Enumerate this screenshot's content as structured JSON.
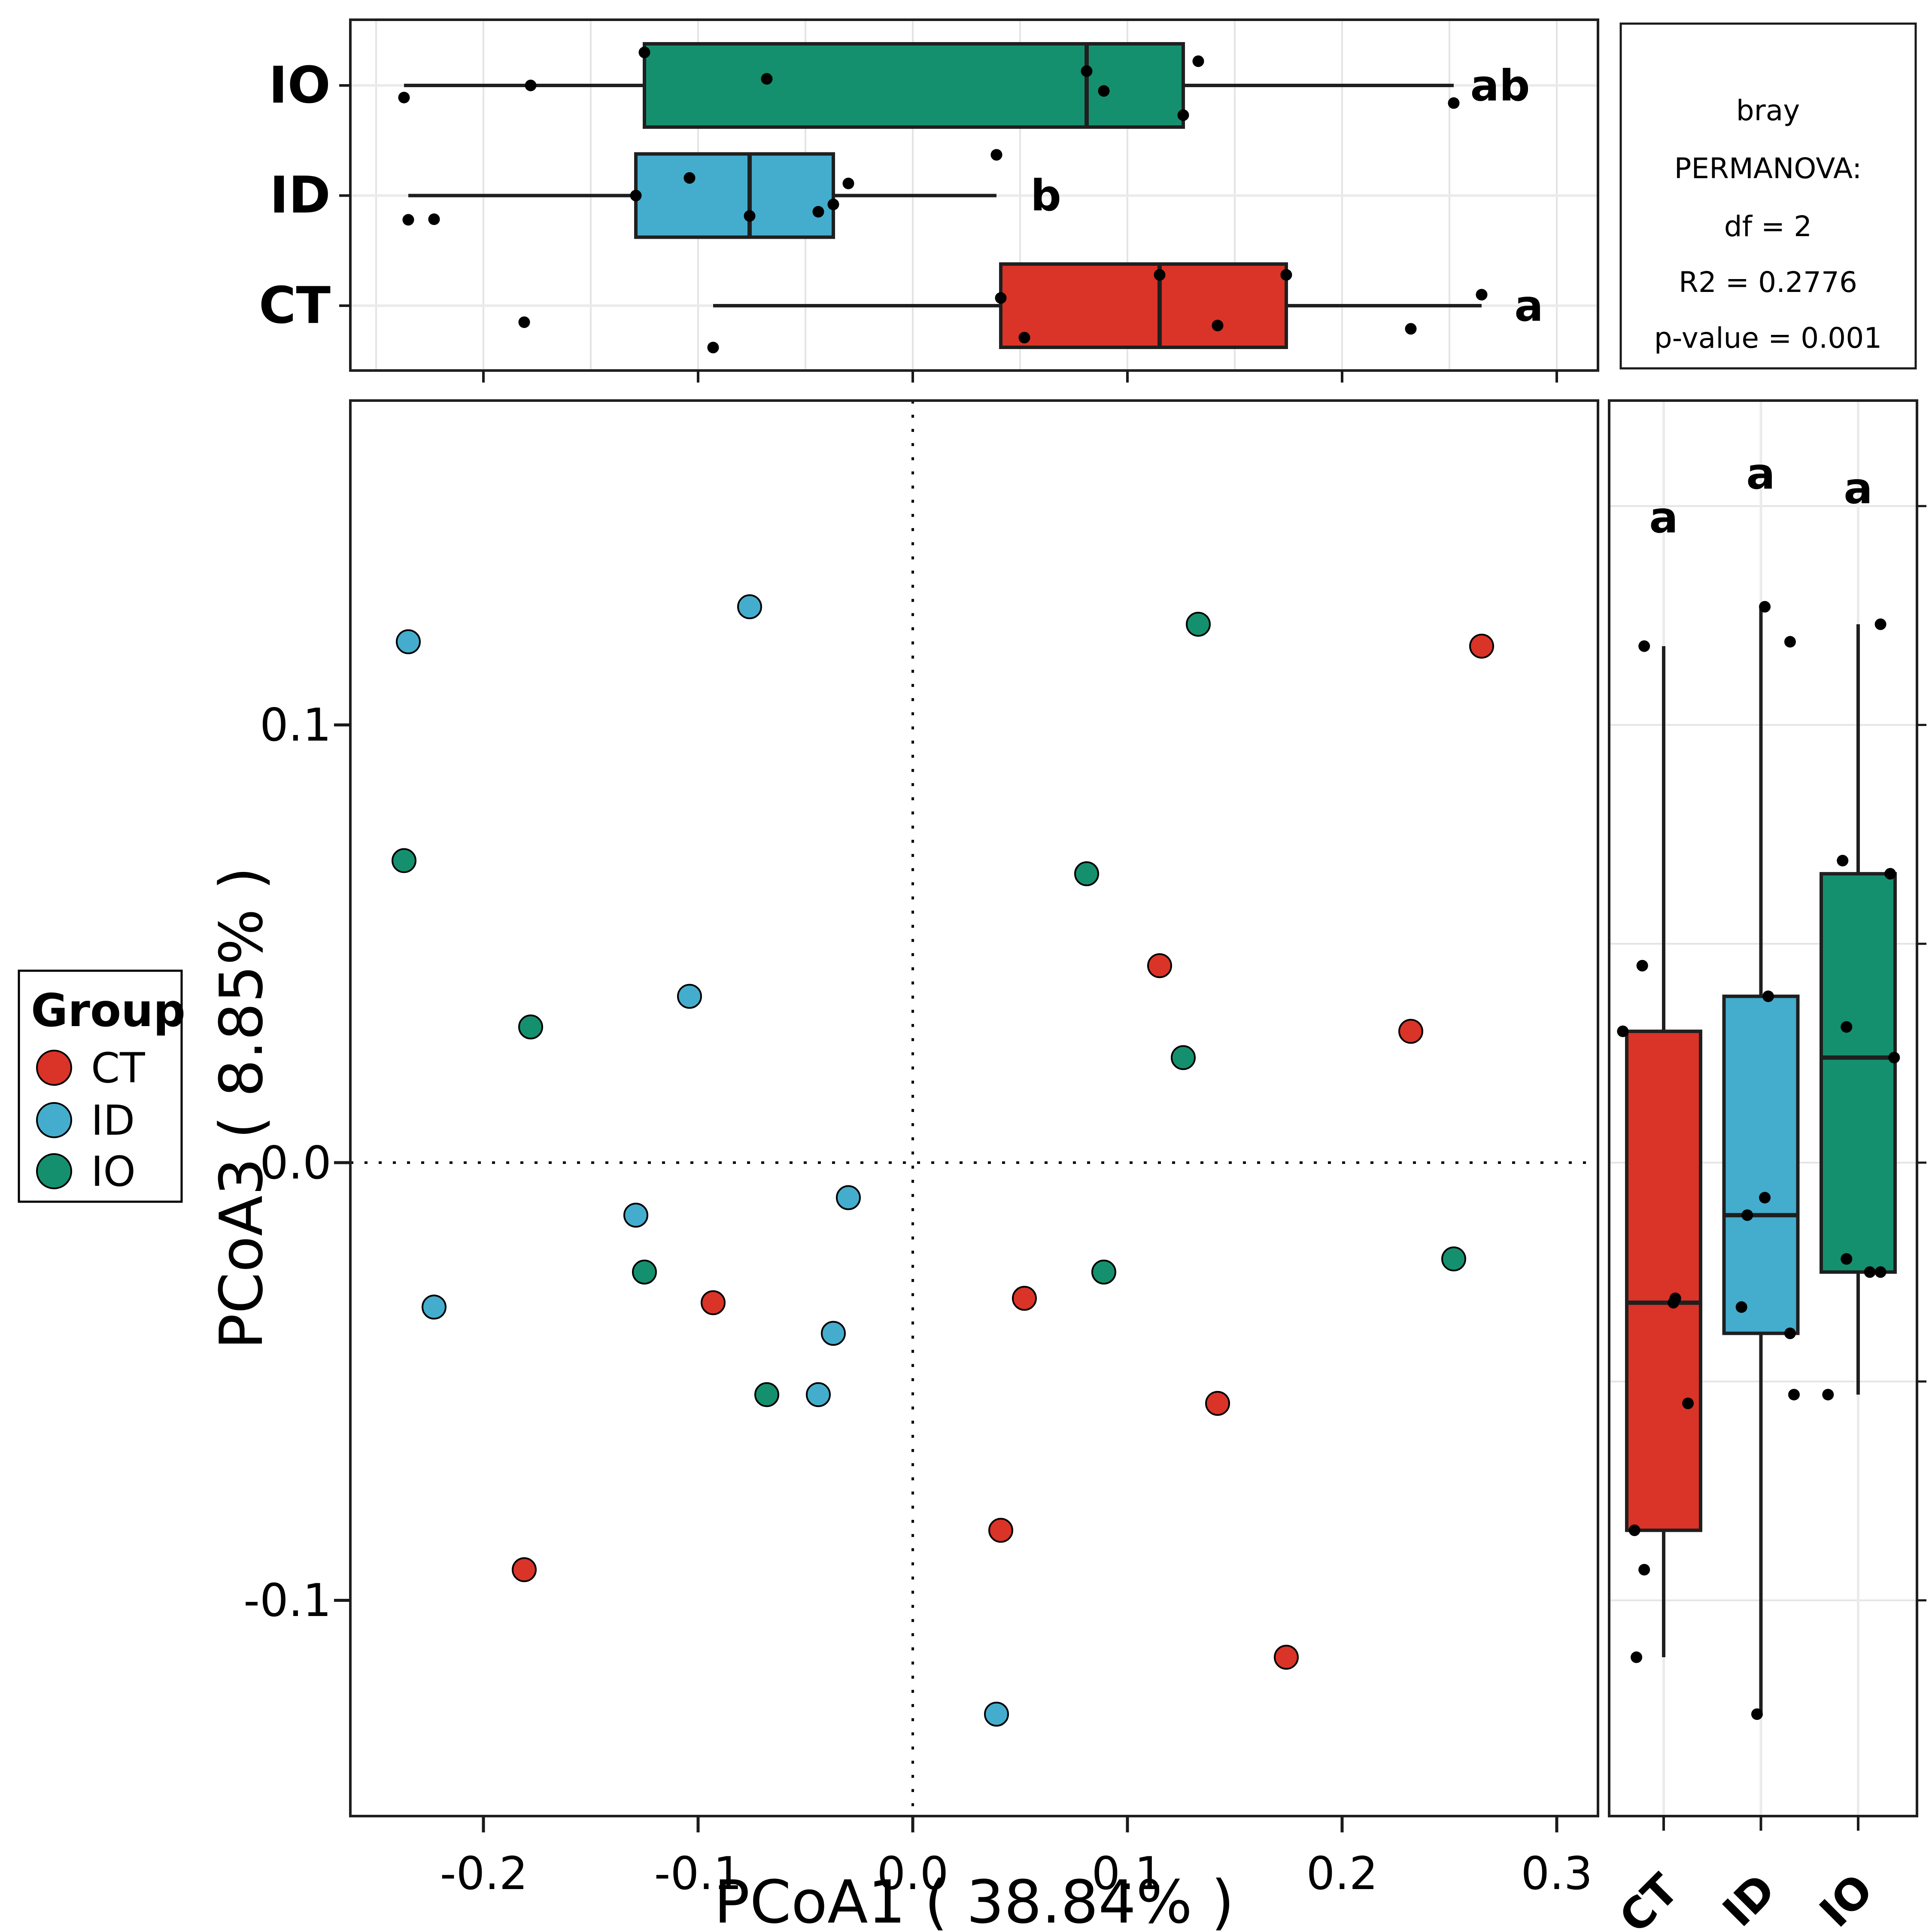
{
  "axes": {
    "x": {
      "title": "PCoA1 ( 38.84% )",
      "ticks": [
        -0.2,
        -0.1,
        0.0,
        0.1,
        0.2,
        0.3
      ],
      "tick_labels": [
        "-0.2",
        "-0.1",
        "0.0",
        "0.1",
        "0.2",
        "0.3"
      ],
      "limits": [
        -0.262,
        0.3192
      ]
    },
    "y": {
      "title": "PCoA3 ( 8.85% )",
      "ticks": [
        0.1,
        0.0,
        -0.1
      ],
      "tick_labels": [
        "0.1",
        "0.0",
        "-0.1"
      ],
      "limits": [
        -0.1493,
        0.174
      ]
    }
  },
  "legend": {
    "title": "Group",
    "items": [
      {
        "label": "CT",
        "color": "#DA3327"
      },
      {
        "label": "ID",
        "color": "#44ADCD"
      },
      {
        "label": "IO",
        "color": "#15906F"
      }
    ]
  },
  "permanova_box": {
    "lines": [
      "bray",
      "PERMANOVA:",
      "df = 2",
      "R2 = 0.2776",
      "p-value = 0.001"
    ]
  },
  "chart_data": {
    "type": "scatter",
    "subtype": "pcoa-with-marginal-boxplots",
    "groups": [
      "CT",
      "ID",
      "IO"
    ],
    "colors": {
      "CT": "#DA3327",
      "ID": "#44ADCD",
      "IO": "#15906F"
    },
    "grid_color": "#E4E4E4",
    "row_line_color": "#EBEBEB",
    "box_stroke": "#1F1F1F",
    "xlabel": "PCoA1 ( 38.84% )",
    "ylabel": "PCoA3 ( 8.85% )",
    "xlim": [
      -0.262,
      0.3192
    ],
    "ylim": [
      -0.1493,
      0.174
    ],
    "grid_step": 0.05,
    "points": [
      {
        "g": "CT",
        "x": 0.265,
        "y": 0.118,
        "jt": 0.1,
        "jr": -0.2
      },
      {
        "g": "CT",
        "x": 0.115,
        "y": 0.045,
        "jt": 0.28,
        "jr": -0.22
      },
      {
        "g": "CT",
        "x": 0.232,
        "y": 0.03,
        "jt": -0.21,
        "jr": -0.42
      },
      {
        "g": "CT",
        "x": -0.093,
        "y": -0.032,
        "jt": -0.38,
        "jr": 0.1
      },
      {
        "g": "CT",
        "x": 0.052,
        "y": -0.031,
        "jt": -0.29,
        "jr": 0.12
      },
      {
        "g": "CT",
        "x": 0.142,
        "y": -0.055,
        "jt": -0.18,
        "jr": 0.25
      },
      {
        "g": "CT",
        "x": -0.181,
        "y": -0.093,
        "jt": -0.15,
        "jr": -0.2
      },
      {
        "g": "CT",
        "x": 0.041,
        "y": -0.084,
        "jt": 0.07,
        "jr": -0.3
      },
      {
        "g": "CT",
        "x": 0.174,
        "y": -0.113,
        "jt": 0.28,
        "jr": -0.28
      },
      {
        "g": "ID",
        "x": -0.235,
        "y": 0.119,
        "jt": -0.22,
        "jr": 0.3
      },
      {
        "g": "ID",
        "x": -0.076,
        "y": 0.127,
        "jt": -0.185,
        "jr": 0.04
      },
      {
        "g": "ID",
        "x": -0.104,
        "y": 0.038,
        "jt": 0.16,
        "jr": 0.075
      },
      {
        "g": "ID",
        "x": -0.03,
        "y": -0.008,
        "jt": 0.11,
        "jr": 0.04
      },
      {
        "g": "ID",
        "x": -0.129,
        "y": -0.012,
        "jt": 0.0,
        "jr": -0.14
      },
      {
        "g": "ID",
        "x": -0.223,
        "y": -0.033,
        "jt": -0.215,
        "jr": -0.2
      },
      {
        "g": "ID",
        "x": -0.037,
        "y": -0.039,
        "jt": -0.08,
        "jr": 0.3
      },
      {
        "g": "ID",
        "x": -0.044,
        "y": -0.053,
        "jt": -0.147,
        "jr": 0.34
      },
      {
        "g": "ID",
        "x": 0.039,
        "y": -0.126,
        "jt": 0.37,
        "jr": -0.04
      },
      {
        "g": "IO",
        "x": 0.133,
        "y": 0.123,
        "jt": 0.22,
        "jr": 0.23
      },
      {
        "g": "IO",
        "x": -0.237,
        "y": 0.069,
        "jt": -0.11,
        "jr": -0.16
      },
      {
        "g": "IO",
        "x": 0.081,
        "y": 0.066,
        "jt": 0.13,
        "jr": 0.33
      },
      {
        "g": "IO",
        "x": -0.178,
        "y": 0.031,
        "jt": 0.0,
        "jr": -0.12
      },
      {
        "g": "IO",
        "x": 0.126,
        "y": 0.024,
        "jt": -0.27,
        "jr": 0.37
      },
      {
        "g": "IO",
        "x": -0.125,
        "y": -0.025,
        "jt": 0.3,
        "jr": 0.12
      },
      {
        "g": "IO",
        "x": 0.089,
        "y": -0.025,
        "jt": -0.05,
        "jr": 0.23
      },
      {
        "g": "IO",
        "x": 0.252,
        "y": -0.022,
        "jt": -0.16,
        "jr": -0.12
      },
      {
        "g": "IO",
        "x": -0.068,
        "y": -0.053,
        "jt": 0.06,
        "jr": -0.31
      }
    ],
    "box_x": {
      "order_top_to_bottom": [
        "IO",
        "ID",
        "CT"
      ],
      "IO": {
        "lo": -0.237,
        "q1": -0.125,
        "med": 0.081,
        "q3": 0.126,
        "hi": 0.252
      },
      "ID": {
        "lo": -0.235,
        "q1": -0.129,
        "med": -0.076,
        "q3": -0.037,
        "hi": 0.039
      },
      "CT": {
        "lo": -0.093,
        "q1": 0.041,
        "med": 0.115,
        "q3": 0.174,
        "hi": 0.265
      }
    },
    "box_y": {
      "order_left_to_right": [
        "CT",
        "ID",
        "IO"
      ],
      "CT": {
        "lo": -0.113,
        "q1": -0.084,
        "med": -0.032,
        "q3": 0.03,
        "hi": 0.118
      },
      "ID": {
        "lo": -0.126,
        "q1": -0.039,
        "med": -0.012,
        "q3": 0.038,
        "hi": 0.127
      },
      "IO": {
        "lo": -0.053,
        "q1": -0.025,
        "med": 0.024,
        "q3": 0.066,
        "hi": 0.123
      }
    },
    "sig_letters_top": [
      {
        "row": "IO",
        "label": "ab",
        "x": 0.274
      },
      {
        "row": "ID",
        "label": "b",
        "x": 0.062
      },
      {
        "row": "CT",
        "label": "a",
        "x": 0.287
      }
    ],
    "sig_letters_right": [
      {
        "col": "CT",
        "label": "a",
        "y": 0.147
      },
      {
        "col": "ID",
        "label": "a",
        "y": 0.157
      },
      {
        "col": "IO",
        "label": "a",
        "y": 0.154
      }
    ]
  }
}
